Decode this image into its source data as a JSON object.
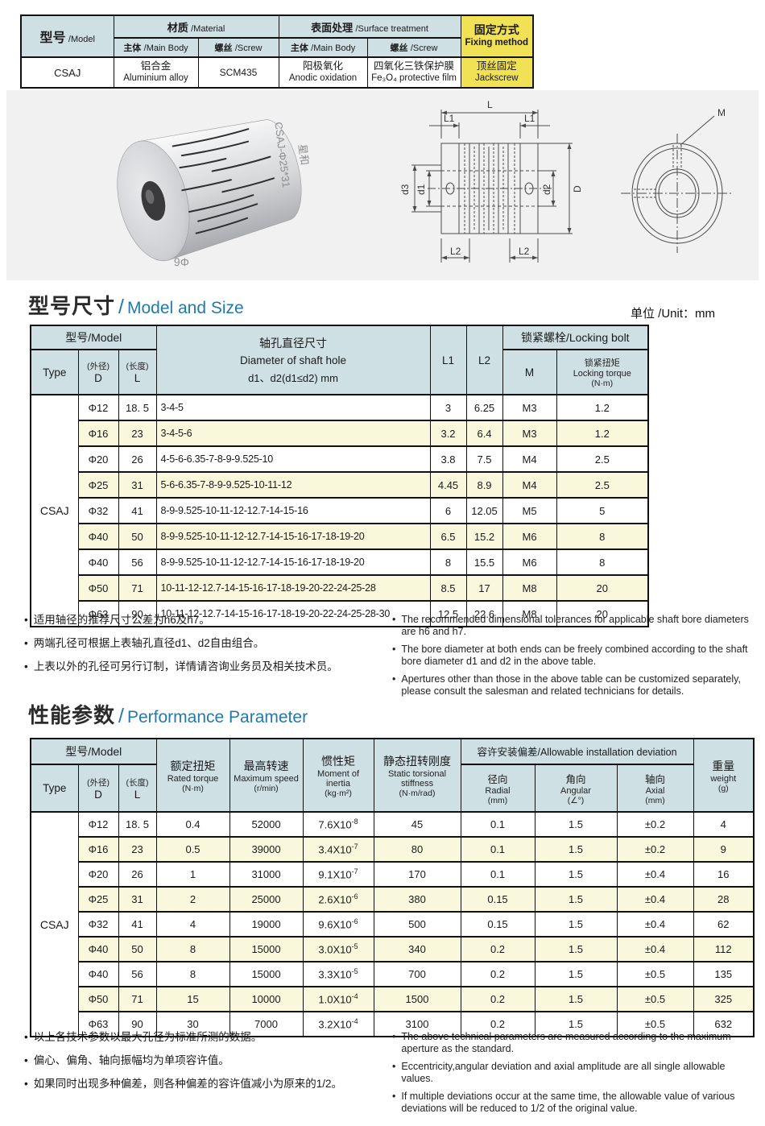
{
  "colors": {
    "accent_blue": "#2579a9",
    "table_header_bg": "#cfe0e4",
    "alt_row_bg": "#f9f8dd",
    "highlight_yellow": "#f0e155",
    "panel_gray": "#f1f1f2"
  },
  "spec": {
    "model_zh": "型号",
    "model_en": "/Model",
    "material_zh": "材质",
    "material_en": "/Material",
    "surface_zh": "表面处理",
    "surface_en": "/Surface treatment",
    "fixing_zh": "固定方式",
    "fixing_en": "Fixing method",
    "sub_main_zh": "主体",
    "sub_main_en": "/Main Body",
    "sub_screw_zh": "螺丝",
    "sub_screw_en": "/Screw",
    "row": {
      "model": "CSAJ",
      "body_material_zh": "铝合金",
      "body_material_en": "Aluminium alloy",
      "screw_material": "SCM435",
      "body_surface_zh": "阳极氧化",
      "body_surface_en": "Anodic oxidation",
      "screw_surface_zh": "四氧化三铁保护膜",
      "screw_surface_en": "Fe₃O₄ protective film",
      "fixing_method_zh": "顶丝固定",
      "fixing_method_en": "Jackscrew"
    }
  },
  "product_views": {
    "photo_brand": "星和",
    "photo_model": "CSAJ-Φ25*31",
    "photo_bore": "Φ6",
    "dims": {
      "L": "L",
      "L1": "L1",
      "L2": "L2",
      "d1": "d1",
      "d2": "d2",
      "d3": "d3",
      "D": "D",
      "M": "M"
    }
  },
  "model_size": {
    "title_zh": "型号尺寸",
    "title_sep": "/",
    "title_en": "Model and Size",
    "unit": "单位 /Unit：mm",
    "header": {
      "model": "型号/Model",
      "type": "Type",
      "d_sub": "(外径)",
      "d": "D",
      "l_sub": "(长度)",
      "l": "L",
      "shaft_zh": "轴孔直径尺寸",
      "shaft_en": "Diameter of shaft hole",
      "shaft_range": "d1、d2(d1≤d2) mm",
      "l1": "L1",
      "l2": "L2",
      "locking_bolt": "锁紧螺栓/Locking bolt",
      "m": "M",
      "torque_zh": "锁紧扭矩",
      "torque_en": "Locking torque",
      "torque_unit": "(N·m)"
    },
    "type_label": "CSAJ",
    "rows": [
      {
        "d": "Φ12",
        "l": "18. 5",
        "bores": "3-4-5",
        "l1": "3",
        "l2": "6.25",
        "m": "M3",
        "torque": "1.2"
      },
      {
        "d": "Φ16",
        "l": "23",
        "bores": "3-4-5-6",
        "l1": "3.2",
        "l2": "6.4",
        "m": "M3",
        "torque": "1.2"
      },
      {
        "d": "Φ20",
        "l": "26",
        "bores": "4-5-6-6.35-7-8-9-9.525-10",
        "l1": "3.8",
        "l2": "7.5",
        "m": "M4",
        "torque": "2.5"
      },
      {
        "d": "Φ25",
        "l": "31",
        "bores": "5-6-6.35-7-8-9-9.525-10-11-12",
        "l1": "4.45",
        "l2": "8.9",
        "m": "M4",
        "torque": "2.5"
      },
      {
        "d": "Φ32",
        "l": "41",
        "bores": "8-9-9.525-10-11-12-12.7-14-15-16",
        "l1": "6",
        "l2": "12.05",
        "m": "M5",
        "torque": "5"
      },
      {
        "d": "Φ40",
        "l": "50",
        "bores": "8-9-9.525-10-11-12-12.7-14-15-16-17-18-19-20",
        "l1": "6.5",
        "l2": "15.2",
        "m": "M6",
        "torque": "8"
      },
      {
        "d": "Φ40",
        "l": "56",
        "bores": "8-9-9.525-10-11-12-12.7-14-15-16-17-18-19-20",
        "l1": "8",
        "l2": "15.5",
        "m": "M6",
        "torque": "8"
      },
      {
        "d": "Φ50",
        "l": "71",
        "bores": "10-11-12-12.7-14-15-16-17-18-19-20-22-24-25-28",
        "l1": "8.5",
        "l2": "17",
        "m": "M8",
        "torque": "20"
      },
      {
        "d": "Φ63",
        "l": "90",
        "bores": "10-11-12-12.7-14-15-16-17-18-19-20-22-24-25-28-30",
        "l1": "12.5",
        "l2": "22.6",
        "m": "M8",
        "torque": "20"
      }
    ]
  },
  "model_size_notes_zh": [
    "适用轴径的推荐尺寸公差为h6及h7。",
    "两端孔径可根据上表轴孔直径d1、d2自由组合。",
    "上表以外的孔径可另行订制，详情请咨询业务员及相关技术员。"
  ],
  "model_size_notes_en": [
    "The recommended dimensional tolerances for applicable shaft bore diameters are h6 and h7.",
    "The bore diameter at both ends can be freely combined according to the shaft bore diameter d1 and d2 in the above table.",
    "Apertures other than those in the above table can be customized separately, please consult the salesman and related technicians for details."
  ],
  "performance": {
    "title_zh": "性能参数",
    "title_sep": "/",
    "title_en": "Performance Parameter",
    "header": {
      "model": "型号/Model",
      "type": "Type",
      "d_sub": "(外径)",
      "d": "D",
      "l_sub": "(长度)",
      "l": "L",
      "rated_zh": "额定扭矩",
      "rated_en": "Rated torque",
      "rated_unit": "(N·m)",
      "speed_zh": "最高转速",
      "speed_en": "Maximum speed",
      "speed_unit": "(r/min)",
      "inertia_zh": "惯性矩",
      "inertia_en": "Moment of inertia",
      "inertia_unit": "(kg·m²)",
      "stiffness_zh": "静态扭转刚度",
      "stiffness_en": "Static torsional stiffness",
      "stiffness_unit": "(N·m/rad)",
      "deviation": "容许安装偏差/Allowable installation deviation",
      "radial_zh": "径向",
      "radial_en": "Radial",
      "radial_unit": "(mm)",
      "angular_zh": "角向",
      "angular_en": "Angular",
      "angular_unit": "(∠°)",
      "axial_zh": "轴向",
      "axial_en": "Axial",
      "axial_unit": "(mm)",
      "weight_zh": "重量",
      "weight_en": "weight",
      "weight_unit": "(g)"
    },
    "type_label": "CSAJ",
    "rows": [
      {
        "d": "Φ12",
        "l": "18. 5",
        "torque": "0.4",
        "speed": "52000",
        "inertia": [
          "7.6X10",
          "-8"
        ],
        "stiffness": "45",
        "radial": "0.1",
        "angular": "1.5",
        "axial": "±0.2",
        "weight": "4"
      },
      {
        "d": "Φ16",
        "l": "23",
        "torque": "0.5",
        "speed": "39000",
        "inertia": [
          "3.4X10",
          "-7"
        ],
        "stiffness": "80",
        "radial": "0.1",
        "angular": "1.5",
        "axial": "±0.2",
        "weight": "9"
      },
      {
        "d": "Φ20",
        "l": "26",
        "torque": "1",
        "speed": "31000",
        "inertia": [
          "9.1X10",
          "-7"
        ],
        "stiffness": "170",
        "radial": "0.1",
        "angular": "1.5",
        "axial": "±0.4",
        "weight": "16"
      },
      {
        "d": "Φ25",
        "l": "31",
        "torque": "2",
        "speed": "25000",
        "inertia": [
          "2.6X10",
          "-6"
        ],
        "stiffness": "380",
        "radial": "0.15",
        "angular": "1.5",
        "axial": "±0.4",
        "weight": "28"
      },
      {
        "d": "Φ32",
        "l": "41",
        "torque": "4",
        "speed": "19000",
        "inertia": [
          "9.6X10",
          "-6"
        ],
        "stiffness": "500",
        "radial": "0.15",
        "angular": "1.5",
        "axial": "±0.4",
        "weight": "62"
      },
      {
        "d": "Φ40",
        "l": "50",
        "torque": "8",
        "speed": "15000",
        "inertia": [
          "3.0X10",
          "-5"
        ],
        "stiffness": "340",
        "radial": "0.2",
        "angular": "1.5",
        "axial": "±0.4",
        "weight": "112"
      },
      {
        "d": "Φ40",
        "l": "56",
        "torque": "8",
        "speed": "15000",
        "inertia": [
          "3.3X10",
          "-5"
        ],
        "stiffness": "700",
        "radial": "0.2",
        "angular": "1.5",
        "axial": "±0.5",
        "weight": "135"
      },
      {
        "d": "Φ50",
        "l": "71",
        "torque": "15",
        "speed": "10000",
        "inertia": [
          "1.0X10",
          "-4"
        ],
        "stiffness": "1500",
        "radial": "0.2",
        "angular": "1.5",
        "axial": "±0.5",
        "weight": "325"
      },
      {
        "d": "Φ63",
        "l": "90",
        "torque": "30",
        "speed": "7000",
        "inertia": [
          "3.2X10",
          "-4"
        ],
        "stiffness": "3100",
        "radial": "0.2",
        "angular": "1.5",
        "axial": "±0.5",
        "weight": "632"
      }
    ]
  },
  "performance_notes_zh": [
    "以上各技术参数以最大孔径为标准所测的数据。",
    "偏心、偏角、轴向振幅均为单项容许值。",
    "如果同时出现多种偏差，则各种偏差的容许值减小为原来的1/2。"
  ],
  "performance_notes_en": [
    "The above technical parameters are measured according to the maximum aperture as the standard.",
    "Eccentricity,angular deviation and axial amplitude are all single allowable values.",
    "If multiple deviations occur at the same time, the allowable value of various deviations will be reduced to 1/2 of the original value."
  ]
}
